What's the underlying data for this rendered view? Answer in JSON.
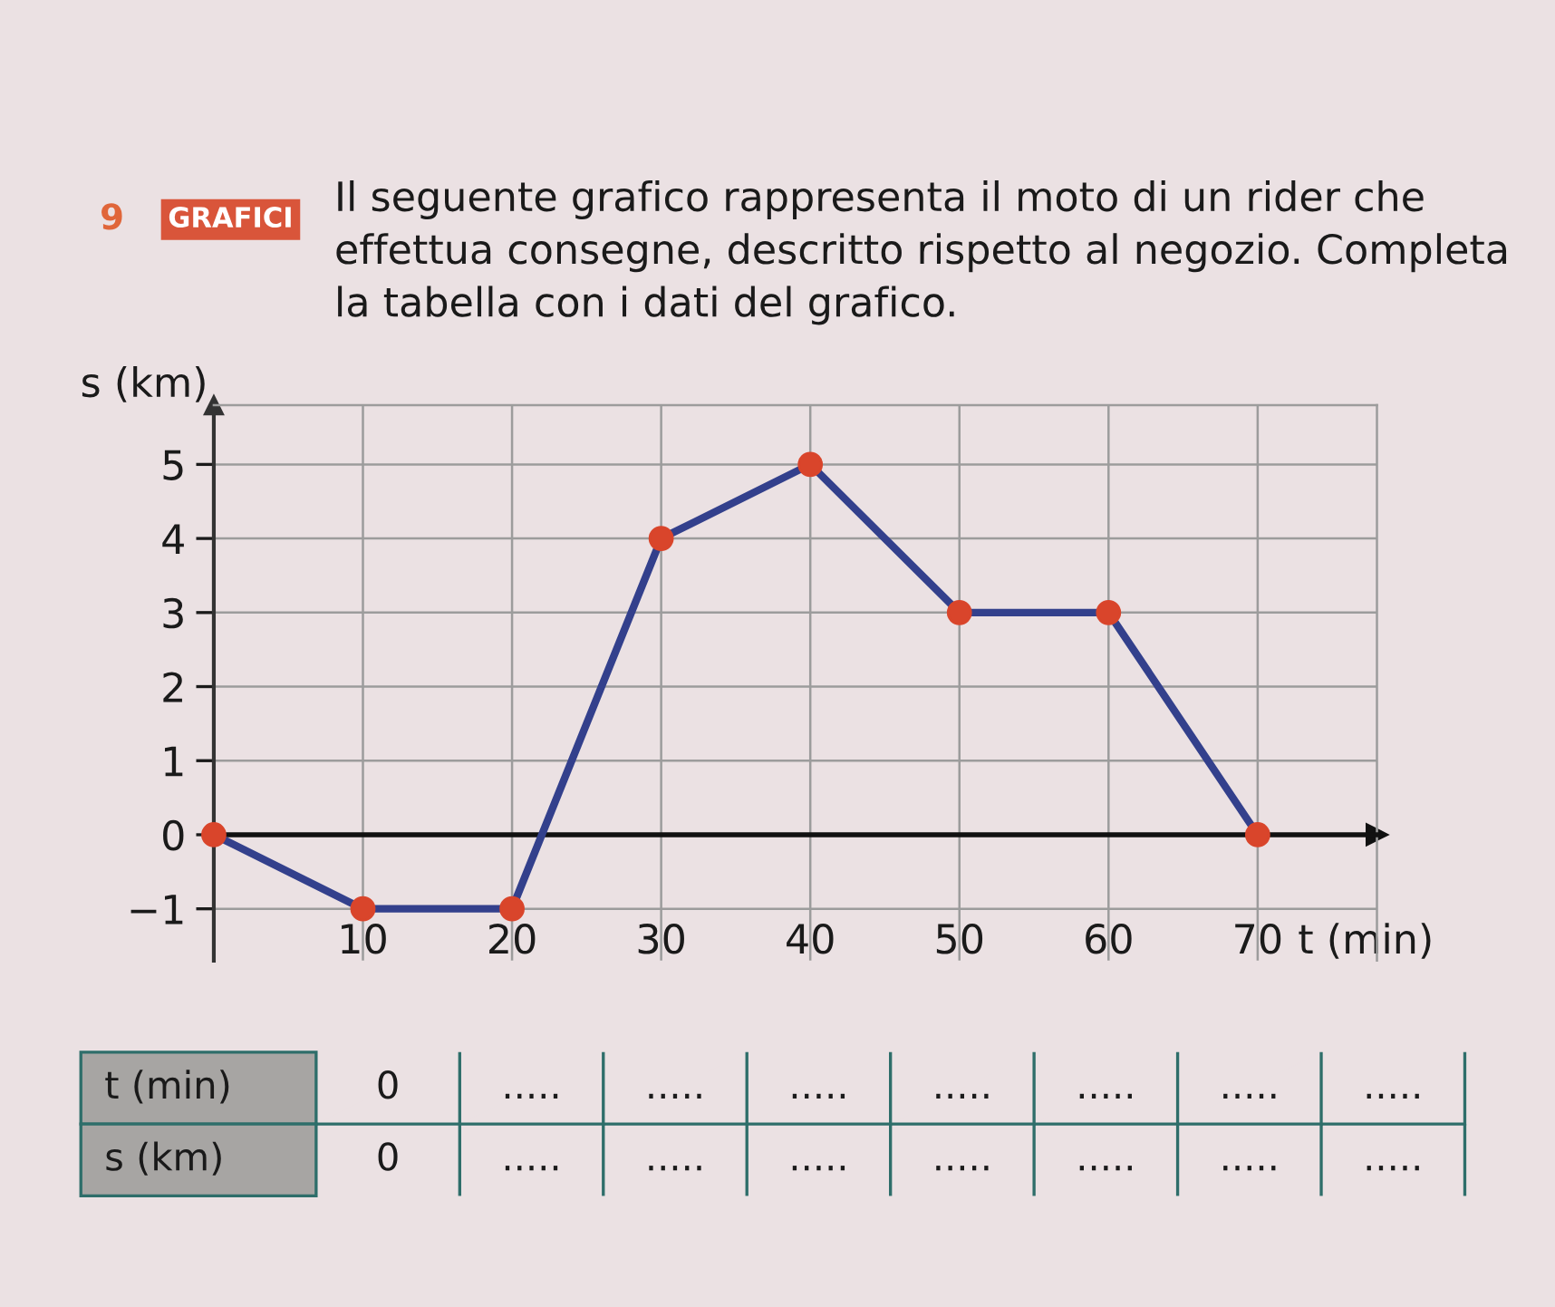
{
  "chart_data": [
    {
      "type": "line",
      "title": "GRAFICI",
      "subtitle": "Il seguente grafico rappresenta il moto di un rider che effettua consegne, descritto rispetto al negozio. Completa la tabella con i dati del grafico.",
      "annotations": [
        "9"
      ],
      "xlabel": "t (min)",
      "ylabel": "s (km)",
      "x": [
        0,
        10,
        20,
        30,
        40,
        50,
        60,
        70
      ],
      "series": [
        {
          "color": "#33408c",
          "colors": [
            "#d9452b",
            "#d9452b",
            "#d9452b",
            "#d9452b",
            "#d9452b",
            "#d9452b",
            "#d9452b",
            "#d9452b"
          ],
          "values": [
            0,
            -1,
            -1,
            4,
            5,
            3,
            3,
            0
          ]
        }
      ],
      "xlim": [
        0,
        78
      ],
      "ylim": [
        -1.7,
        5.8
      ],
      "xticks": [
        10,
        20,
        30,
        40,
        50,
        60,
        70
      ],
      "yticks": [
        {
          "value": -1,
          "label": "−1"
        },
        0,
        1,
        2,
        3,
        4,
        5
      ],
      "grid": true,
      "marker": "circle",
      "line_style": "solid"
    },
    {
      "type": "other",
      "annotations": [
        "t (min)",
        "0",
        ".....",
        ".....",
        ".....",
        ".....",
        ".....",
        ".....",
        ".....",
        "s (km)",
        "0",
        ".....",
        ".....",
        ".....",
        ".....",
        ".....",
        ".....",
        "....."
      ]
    }
  ]
}
